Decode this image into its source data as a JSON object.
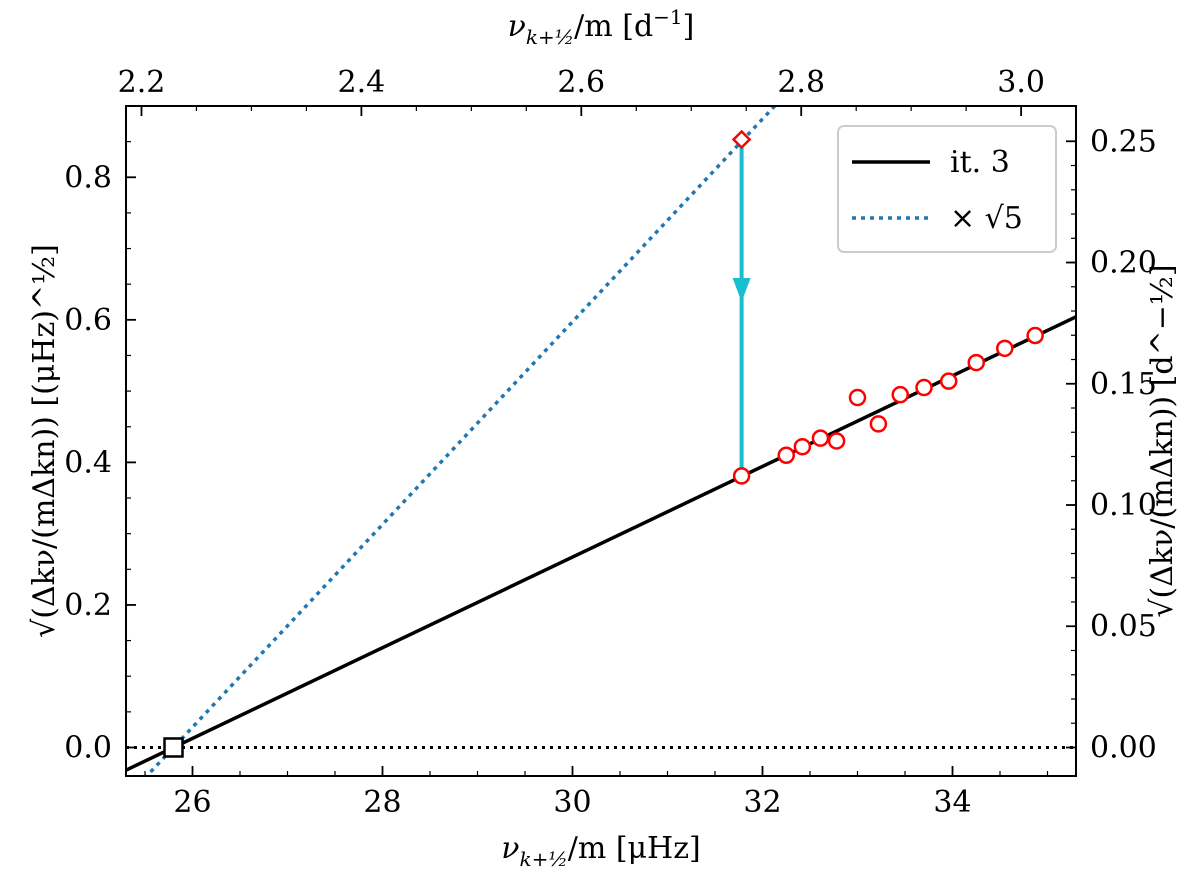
{
  "chart_data": {
    "type": "line",
    "xlim": [
      25.3,
      35.3
    ],
    "ylim": [
      -0.04,
      0.9
    ],
    "xticks": [
      26,
      28,
      30,
      32,
      34
    ],
    "xtick_labels": [
      "26",
      "28",
      "30",
      "32",
      "34"
    ],
    "yticks": [
      0.0,
      0.2,
      0.4,
      0.6,
      0.8
    ],
    "ytick_labels": [
      "0.0",
      "0.2",
      "0.4",
      "0.6",
      "0.8"
    ],
    "top_axis": {
      "ticks": [
        2.2,
        2.4,
        2.6,
        2.8,
        3.0
      ],
      "tick_labels": [
        "2.2",
        "2.4",
        "2.6",
        "2.8",
        "3.0"
      ],
      "unit_scale": 0.0864
    },
    "right_axis": {
      "ticks": [
        0.0,
        0.05,
        0.1,
        0.15,
        0.2,
        0.25
      ],
      "tick_labels": [
        "0.00",
        "0.05",
        "0.10",
        "0.15",
        "0.20",
        "0.25"
      ],
      "unit_scale": 0.29394
    },
    "xlabel": {
      "base": "ν",
      "sub": "k+½",
      "rest": "/m [μHz]"
    },
    "top_label": {
      "base": "ν",
      "sub": "k+½",
      "rest": "/m [d",
      "sup": "−1",
      "end": "]"
    },
    "ylabel": "√(Δkν/(mΔkn)) [(μHz)^½]",
    "right_label": "√(Δkν/(mΔkn)) [d^−½]",
    "series": [
      {
        "name": "it. 3",
        "style": "solid",
        "color": "#000000",
        "x0": 25.8,
        "slope": 0.0636
      },
      {
        "name": "× √5",
        "style": "dotted",
        "color": "#1f77b4",
        "x0": 25.8,
        "slope": 0.14222
      }
    ],
    "zero_line": {
      "y": 0.0,
      "style": "dotted",
      "color": "#000000"
    },
    "points": {
      "color": "#ff0000",
      "x": [
        31.78,
        32.25,
        32.42,
        32.61,
        32.78,
        33.0,
        33.22,
        33.45,
        33.7,
        33.96,
        34.25,
        34.55,
        34.87
      ],
      "y": [
        0.381,
        0.41,
        0.422,
        0.434,
        0.43,
        0.491,
        0.454,
        0.495,
        0.505,
        0.514,
        0.54,
        0.56,
        0.578
      ]
    },
    "diamond": {
      "x": 31.78,
      "y": 0.853,
      "color": "#ff0000"
    },
    "square": {
      "x": 25.8,
      "y": 0.0
    },
    "arrow": {
      "x": 31.78,
      "y_start": 0.853,
      "y_end": 0.381,
      "head_y": 0.625,
      "color": "#17becf"
    },
    "legend": {
      "position": "top-right",
      "entries": [
        {
          "label": "it. 3",
          "style": "solid",
          "color": "#000000"
        },
        {
          "label": "× √5",
          "style": "dotted",
          "color": "#1f77b4"
        }
      ]
    }
  }
}
